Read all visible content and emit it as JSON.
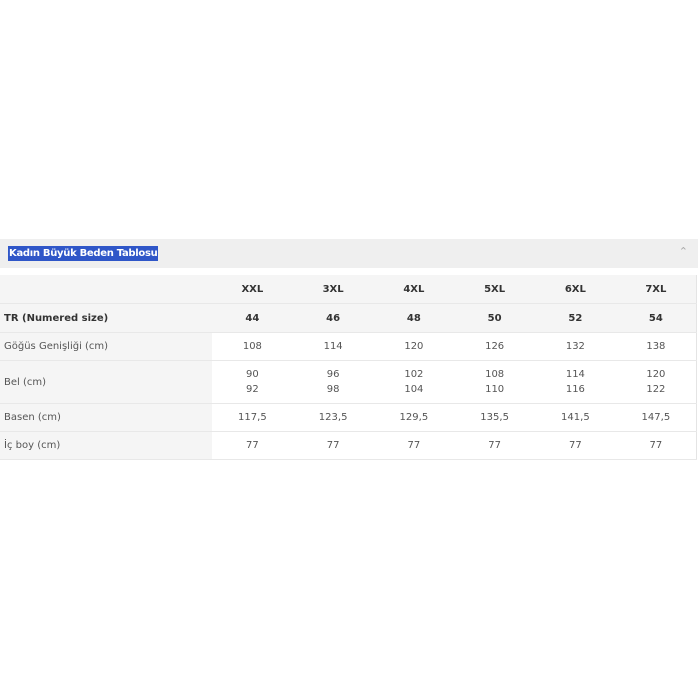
{
  "accordion": {
    "title": "Kadın Büyük Beden Tablosu",
    "icon": "chevron-up-icon"
  },
  "table": {
    "headers": [
      "",
      "XXL",
      "3XL",
      "4XL",
      "5XL",
      "6XL",
      "7XL"
    ],
    "rows": [
      {
        "label": "TR (Numered size)",
        "values": [
          "44",
          "46",
          "48",
          "50",
          "52",
          "54"
        ]
      },
      {
        "label": "Göğüs Genişliği (cm)",
        "values": [
          "108",
          "114",
          "120",
          "126",
          "132",
          "138"
        ]
      },
      {
        "label": "Bel (cm)",
        "values": [
          [
            "90",
            "92"
          ],
          [
            "96",
            "98"
          ],
          [
            "102",
            "104"
          ],
          [
            "108",
            "110"
          ],
          [
            "114",
            "116"
          ],
          [
            "120",
            "122"
          ]
        ]
      },
      {
        "label": "Basen (cm)",
        "values": [
          "117,5",
          "123,5",
          "129,5",
          "135,5",
          "141,5",
          "147,5"
        ]
      },
      {
        "label": "İç boy (cm)",
        "values": [
          "77",
          "77",
          "77",
          "77",
          "77",
          "77"
        ]
      }
    ]
  }
}
